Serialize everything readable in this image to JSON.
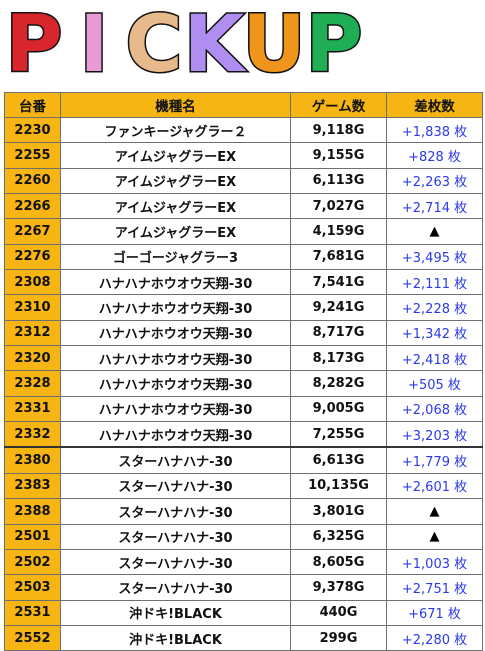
{
  "banner": {
    "letters": [
      {
        "char": "P",
        "color": "#d7262c"
      },
      {
        "char": "I",
        "color": "#e79ad6"
      },
      {
        "char": "C",
        "color": "#e8b98a"
      },
      {
        "char": "K",
        "color": "#b08df0"
      },
      {
        "char": "U",
        "color": "#f0951c"
      },
      {
        "char": "P",
        "color": "#1fae54"
      }
    ]
  },
  "table": {
    "headers": [
      "台番",
      "機種名",
      "ゲーム数",
      "差枚数"
    ],
    "rows": [
      {
        "no": "2230",
        "name": "ファンキージャグラー２",
        "games": "9,118G",
        "diff": "+1,838 枚"
      },
      {
        "no": "2255",
        "name": "アイムジャグラーEX",
        "games": "9,155G",
        "diff": "+828 枚"
      },
      {
        "no": "2260",
        "name": "アイムジャグラーEX",
        "games": "6,113G",
        "diff": "+2,263 枚"
      },
      {
        "no": "2266",
        "name": "アイムジャグラーEX",
        "games": "7,027G",
        "diff": "+2,714 枚"
      },
      {
        "no": "2267",
        "name": "アイムジャグラーEX",
        "games": "4,159G",
        "diff": "▲"
      },
      {
        "no": "2276",
        "name": "ゴーゴージャグラー3",
        "games": "7,681G",
        "diff": "+3,495 枚"
      },
      {
        "no": "2308",
        "name": "ハナハナホウオウ天翔-30",
        "games": "7,541G",
        "diff": "+2,111 枚"
      },
      {
        "no": "2310",
        "name": "ハナハナホウオウ天翔-30",
        "games": "9,241G",
        "diff": "+2,228 枚"
      },
      {
        "no": "2312",
        "name": "ハナハナホウオウ天翔-30",
        "games": "8,717G",
        "diff": "+1,342 枚"
      },
      {
        "no": "2320",
        "name": "ハナハナホウオウ天翔-30",
        "games": "8,173G",
        "diff": "+2,418 枚"
      },
      {
        "no": "2328",
        "name": "ハナハナホウオウ天翔-30",
        "games": "8,282G",
        "diff": "+505 枚"
      },
      {
        "no": "2331",
        "name": "ハナハナホウオウ天翔-30",
        "games": "9,005G",
        "diff": "+2,068 枚"
      },
      {
        "no": "2332",
        "name": "ハナハナホウオウ天翔-30",
        "games": "7,255G",
        "diff": "+3,203 枚"
      },
      {
        "no": "2380",
        "name": "スターハナハナ-30",
        "games": "6,613G",
        "diff": "+1,779 枚"
      },
      {
        "no": "2383",
        "name": "スターハナハナ-30",
        "games": "10,135G",
        "diff": "+2,601 枚"
      },
      {
        "no": "2388",
        "name": "スターハナハナ-30",
        "games": "3,801G",
        "diff": "▲"
      },
      {
        "no": "2501",
        "name": "スターハナハナ-30",
        "games": "6,325G",
        "diff": "▲"
      },
      {
        "no": "2502",
        "name": "スターハナハナ-30",
        "games": "8,605G",
        "diff": "+1,003 枚"
      },
      {
        "no": "2503",
        "name": "スターハナハナ-30",
        "games": "9,378G",
        "diff": "+2,751 枚"
      },
      {
        "no": "2531",
        "name": "沖ドキ!BLACK",
        "games": "440G",
        "diff": "+671 枚"
      },
      {
        "no": "2552",
        "name": "沖ドキ!BLACK",
        "games": "299G",
        "diff": "+2,280 枚"
      }
    ]
  }
}
